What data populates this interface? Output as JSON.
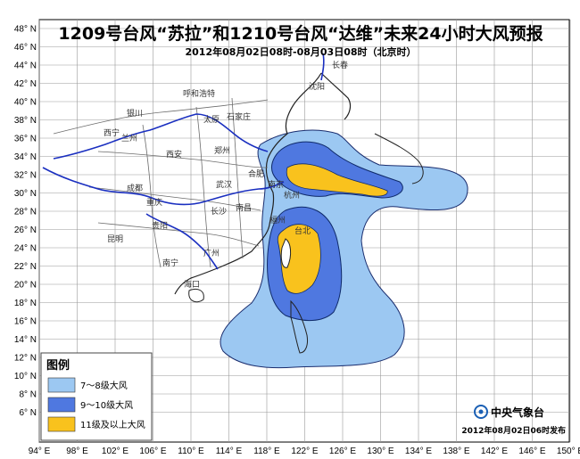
{
  "title": "1209号台风“苏拉”和1210号台风“达维”未来24小时大风预报",
  "subtitle": "2012年08月02日08时-08月03日08时（北京时）",
  "lat_labels": [
    "48° N",
    "46° N",
    "44° N",
    "42° N",
    "40° N",
    "38° N",
    "36° N",
    "34° N",
    "32° N",
    "30° N",
    "28° N",
    "26° N",
    "24° N",
    "22° N",
    "20° N",
    "18° N",
    "16° N",
    "14° N",
    "12° N",
    "10° N",
    "8° N",
    "6° N"
  ],
  "lon_labels": [
    "94° E",
    "98° E",
    "102° E",
    "106° E",
    "110° E",
    "114° E",
    "118° E",
    "122° E",
    "126° E",
    "130° E",
    "134° E",
    "138° E",
    "142° E",
    "146° E",
    "150° E"
  ],
  "cities": [
    "长春",
    "沈阳",
    "呼和浩特",
    "银川",
    "西宁",
    "兰州",
    "太原",
    "石家庄",
    "郑州",
    "西安",
    "成都",
    "重庆",
    "合肥",
    "武汉",
    "长沙",
    "南昌",
    "贵阳",
    "昆明",
    "南宁",
    "广州",
    "海口",
    "台北",
    "福州",
    "杭州",
    "南京"
  ],
  "legend": {
    "title": "图例",
    "items": [
      {
        "label": "7～8级大风",
        "color": "#9cc8f2"
      },
      {
        "label": "9～10级大风",
        "color": "#4f78e0"
      },
      {
        "label": "11级及以上大风",
        "color": "#f9c21d"
      }
    ]
  },
  "agency": "中央气象台",
  "publish_time": "2012年08月02日06时发布",
  "colors": {
    "outline": "#0f2a6a",
    "river": "#1a2fc0",
    "land_border": "#6d6d6d"
  }
}
